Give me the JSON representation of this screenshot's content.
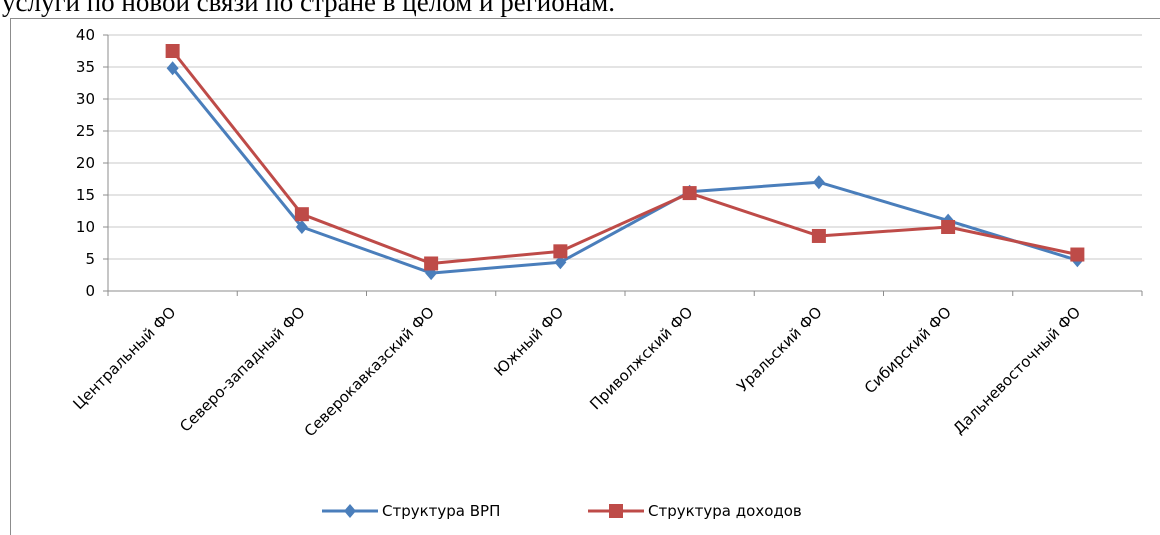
{
  "header_text": "услуги по новой связи по стране в целом и регионам.",
  "chart_data": {
    "type": "line",
    "categories": [
      "Центральный ФО",
      "Северо-западный ФО",
      "Северокавказский ФО",
      "Южный ФО",
      "Приволжский ФО",
      "Уральский ФО",
      "Сибирский ФО",
      "Дальневосточный ФО"
    ],
    "series": [
      {
        "name": "Структура ВРП",
        "color": "#4a7ebb",
        "marker": "diamond",
        "values": [
          34.8,
          10,
          2.8,
          4.5,
          15.5,
          17,
          11,
          4.8
        ]
      },
      {
        "name": "Структура доходов",
        "color": "#be4b48",
        "marker": "square",
        "values": [
          37.5,
          12,
          4.3,
          6.2,
          15.3,
          8.6,
          10,
          5.7
        ]
      }
    ],
    "ylim": [
      0,
      40
    ],
    "yticks": [
      0,
      5,
      10,
      15,
      20,
      25,
      30,
      35,
      40
    ],
    "grid": true,
    "legend": "bottom"
  }
}
